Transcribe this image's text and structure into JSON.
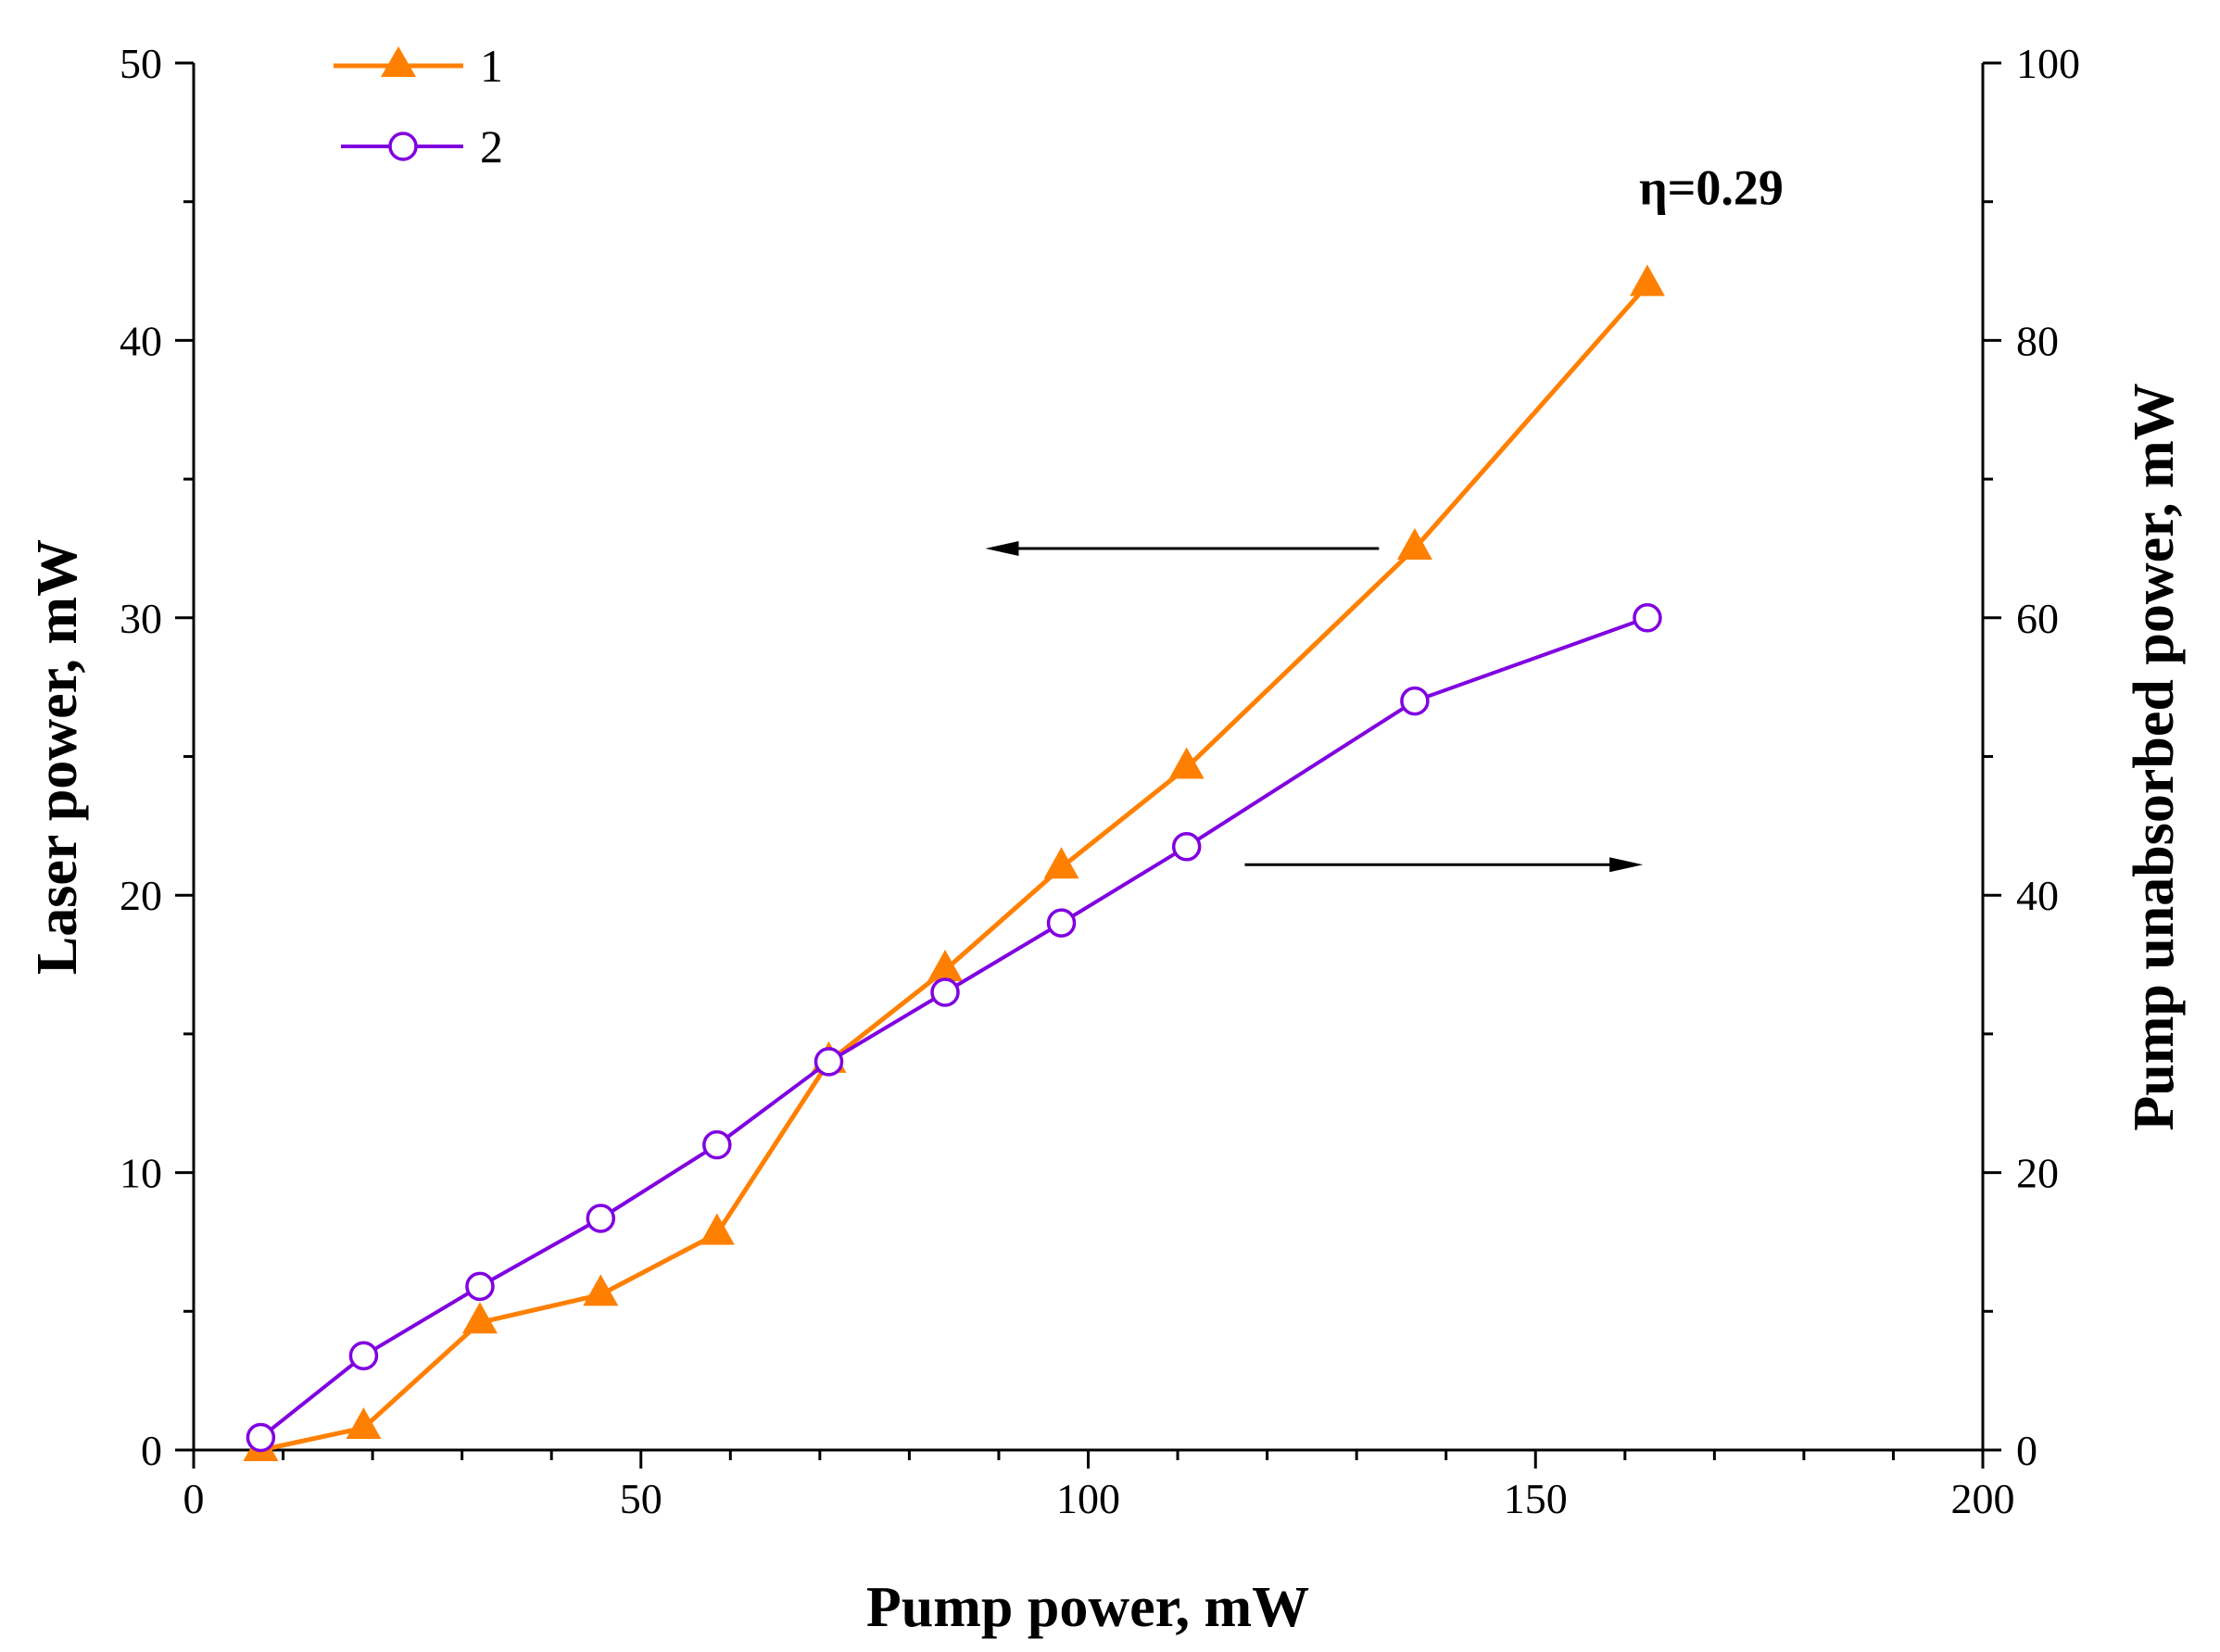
{
  "chart_data": {
    "type": "line",
    "x_axis": {
      "label": "Pump power, mW",
      "range": [
        0,
        200
      ],
      "major_ticks": [
        0,
        50,
        100,
        150,
        200
      ],
      "minor_step": 10
    },
    "y_left": {
      "label": "Laser power, mW",
      "range": [
        0,
        50
      ],
      "major_ticks": [
        0,
        10,
        20,
        30,
        40,
        50
      ],
      "minor_step": 5
    },
    "y_right": {
      "label": "Pump unabsorbed power, mW",
      "range": [
        0,
        100
      ],
      "major_ticks": [
        0,
        20,
        40,
        60,
        80,
        100
      ],
      "minor_step": 10
    },
    "series": [
      {
        "name": "1",
        "axis": "left",
        "color": "#ff8000",
        "marker": "filled-triangle",
        "x": [
          7.5,
          19,
          32,
          45.5,
          58.5,
          71,
          84,
          97,
          111,
          136.5,
          162.5
        ],
        "y": [
          0,
          0.8,
          4.6,
          5.6,
          7.8,
          14,
          17.3,
          21,
          24.6,
          32.5,
          42
        ]
      },
      {
        "name": "2",
        "axis": "right",
        "color": "#8000e0",
        "marker": "open-circle",
        "x": [
          7.5,
          19,
          32,
          45.5,
          58.5,
          71,
          84,
          97,
          111,
          136.5,
          162.5
        ],
        "y": [
          0.9,
          6.8,
          11.8,
          16.7,
          22,
          28,
          33,
          38,
          43.5,
          54,
          60
        ]
      }
    ],
    "annotations": [
      {
        "text": "η=0.29",
        "x": 162.5,
        "y_left": 45.5
      }
    ],
    "arrows": [
      {
        "direction": "left",
        "from_x": 132.5,
        "to_x": 88.5,
        "y_left": 32.5
      },
      {
        "direction": "right",
        "from_x": 117.5,
        "to_x": 162,
        "y_left": 21.1
      }
    ],
    "legend": {
      "position": "top-left",
      "entries": [
        "1",
        "2"
      ]
    }
  }
}
